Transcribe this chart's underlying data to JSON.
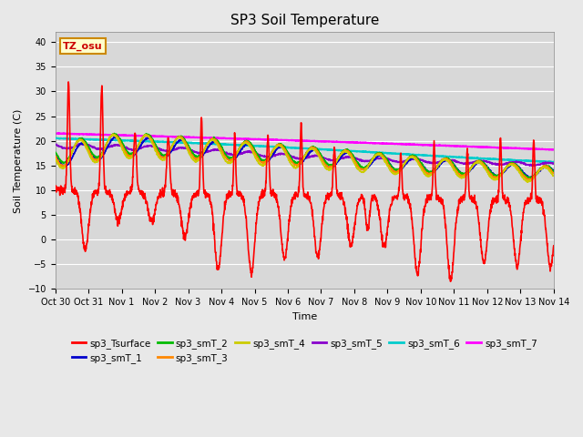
{
  "title": "SP3 Soil Temperature",
  "ylabel": "Soil Temperature (C)",
  "xlabel": "Time",
  "ylim": [
    -10,
    42
  ],
  "yticks": [
    -10,
    -5,
    0,
    5,
    10,
    15,
    20,
    25,
    30,
    35,
    40
  ],
  "x_tick_labels": [
    "Oct 30",
    "Oct 31",
    "Nov 1",
    "Nov 2",
    "Nov 3",
    "Nov 4",
    "Nov 5",
    "Nov 6",
    "Nov 7",
    "Nov 8",
    "Nov 9",
    "Nov 10",
    "Nov 11",
    "Nov 12",
    "Nov 13",
    "Nov 14"
  ],
  "tz_label": "TZ_osu",
  "bg_color": "#e8e8e8",
  "plot_bg_color": "#d8d8d8",
  "grid_color": "#ffffff",
  "series_colors": {
    "sp3_Tsurface": "#ff0000",
    "sp3_smT_1": "#0000cc",
    "sp3_smT_2": "#00bb00",
    "sp3_smT_3": "#ff8800",
    "sp3_smT_4": "#cccc00",
    "sp3_smT_5": "#8800cc",
    "sp3_smT_6": "#00cccc",
    "sp3_smT_7": "#ff00ff"
  }
}
